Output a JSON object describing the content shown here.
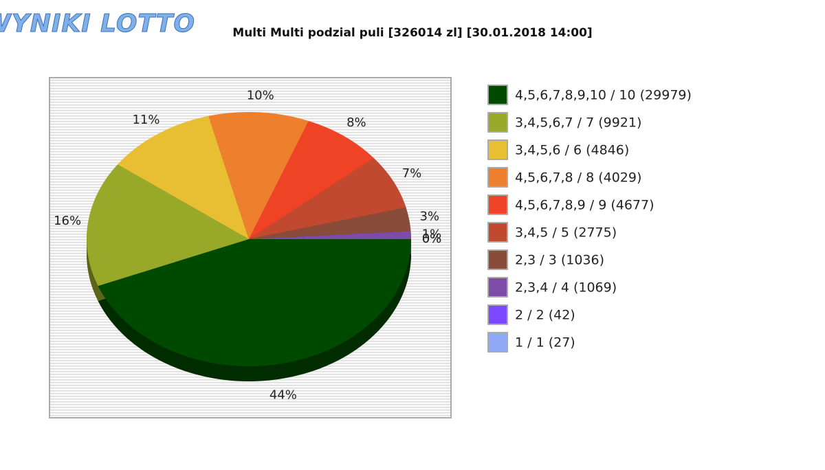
{
  "logo": "WYNIKI LOTTO",
  "chart_data": {
    "type": "pie",
    "title": "Multi Multi podzial puli [326014 zl] [30.01.2018 14:00]",
    "categories": [
      "4,5,6,7,8,9,10 / 10 (29979)",
      "3,4,5,6,7 / 7 (9921)",
      "3,4,5,6 / 6 (4846)",
      "4,5,6,7,8 / 8 (4029)",
      "4,5,6,7,8,9 / 9 (4677)",
      "3,4,5 / 5 (2775)",
      "2,3 / 3 (1036)",
      "2,3,4 / 4 (1069)",
      "2 / 2 (42)",
      "1 / 1 (27)"
    ],
    "values": [
      44,
      16,
      11,
      10,
      8,
      7,
      3,
      1,
      0,
      0
    ],
    "value_labels": [
      "44%",
      "16%",
      "11%",
      "10%",
      "8%",
      "7%",
      "3%",
      "1%",
      "0%",
      "0%"
    ],
    "colors": [
      "#004a00",
      "#98a829",
      "#e8be33",
      "#ee7f2d",
      "#f04325",
      "#c0492f",
      "#8a4c3a",
      "#7d4ba8",
      "#7b48ff",
      "#8fa8f8"
    ],
    "legend": "right"
  }
}
